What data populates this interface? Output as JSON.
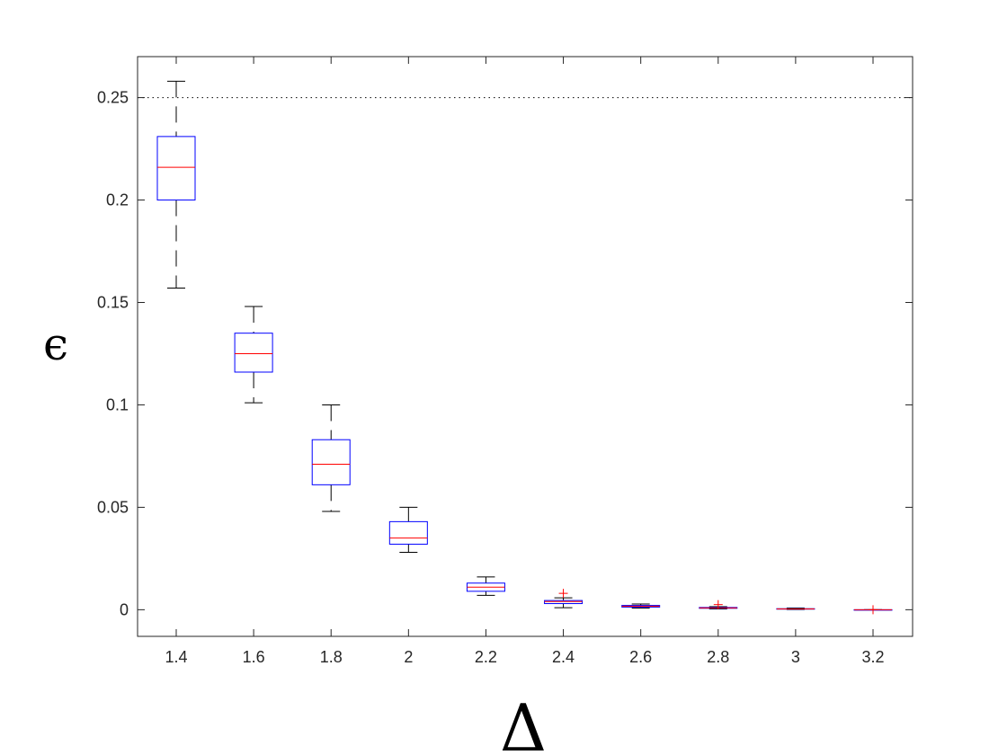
{
  "chart_data": {
    "type": "box",
    "xlabel": "Δ",
    "ylabel": "ϵ",
    "categories": [
      "1.4",
      "1.6",
      "1.8",
      "2",
      "2.2",
      "2.4",
      "2.6",
      "2.8",
      "3",
      "3.2"
    ],
    "ylim": [
      -0.013,
      0.27
    ],
    "yticks": [
      "0",
      "0.05",
      "0.1",
      "0.15",
      "0.2",
      "0.25"
    ],
    "reference_line": {
      "y": 0.25,
      "style": "dotted"
    },
    "grid": false,
    "boxes": [
      {
        "x": "1.4",
        "whisker_low": 0.157,
        "q1": 0.2,
        "median": 0.216,
        "q3": 0.231,
        "whisker_high": 0.258,
        "outliers": []
      },
      {
        "x": "1.6",
        "whisker_low": 0.101,
        "q1": 0.116,
        "median": 0.125,
        "q3": 0.135,
        "whisker_high": 0.148,
        "outliers": []
      },
      {
        "x": "1.8",
        "whisker_low": 0.048,
        "q1": 0.061,
        "median": 0.071,
        "q3": 0.083,
        "whisker_high": 0.1,
        "outliers": []
      },
      {
        "x": "2",
        "whisker_low": 0.028,
        "q1": 0.032,
        "median": 0.035,
        "q3": 0.043,
        "whisker_high": 0.05,
        "outliers": []
      },
      {
        "x": "2.2",
        "whisker_low": 0.007,
        "q1": 0.009,
        "median": 0.011,
        "q3": 0.013,
        "whisker_high": 0.016,
        "outliers": []
      },
      {
        "x": "2.4",
        "whisker_low": 0.001,
        "q1": 0.003,
        "median": 0.004,
        "q3": 0.0045,
        "whisker_high": 0.0058,
        "outliers": [
          0.008
        ]
      },
      {
        "x": "2.6",
        "whisker_low": 0.0008,
        "q1": 0.0013,
        "median": 0.0017,
        "q3": 0.0021,
        "whisker_high": 0.0028,
        "outliers": []
      },
      {
        "x": "2.8",
        "whisker_low": 0.0004,
        "q1": 0.0007,
        "median": 0.0009,
        "q3": 0.0011,
        "whisker_high": 0.0015,
        "outliers": [
          0.0025
        ]
      },
      {
        "x": "3",
        "whisker_low": 0.0001,
        "q1": 0.0003,
        "median": 0.0004,
        "q3": 0.0005,
        "whisker_high": 0.0008,
        "outliers": []
      },
      {
        "x": "3.2",
        "whisker_low": 0.0,
        "q1": 0.0,
        "median": 0.0,
        "q3": 0.0,
        "whisker_high": 0.0,
        "outliers": [
          0.0
        ]
      }
    ],
    "colors": {
      "box": "#0000ff",
      "median": "#ff0000",
      "whisker": "#000000",
      "outlier": "#ff0000",
      "axes": "#262626"
    }
  }
}
